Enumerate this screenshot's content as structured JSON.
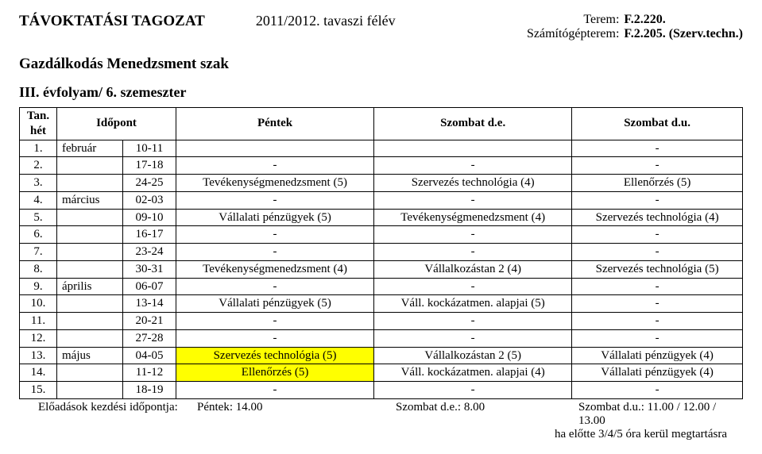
{
  "header": {
    "title": "TÁVOKTATÁSI TAGOZAT",
    "semester": "2011/2012. tavaszi félév",
    "room_label": "Terem:",
    "room_value": "F.2.220.",
    "lab_label": "Számítógépterem:",
    "lab_value": "F.2.205. (Szerv.techn.)",
    "major": "Gazdálkodás Menedzsment szak",
    "year": "III. évfolyam/ 6. szemeszter"
  },
  "columns": {
    "num_l1": "Tan.",
    "num_l2": "hét",
    "time": "Időpont",
    "fri": "Péntek",
    "sat_am": "Szombat d.e.",
    "sat_pm": "Szombat d.u."
  },
  "rows": [
    {
      "n": "1.",
      "m": "február",
      "d": "10-11",
      "a": "",
      "b": "",
      "c": "-"
    },
    {
      "n": "2.",
      "m": "",
      "d": "17-18",
      "a": "-",
      "b": "-",
      "c": "-"
    },
    {
      "n": "3.",
      "m": "",
      "d": "24-25",
      "a": "Tevékenységmenedzsment (5)",
      "b": "Szervezés technológia (4)",
      "c": "Ellenőrzés (5)"
    },
    {
      "n": "4.",
      "m": "március",
      "d": "02-03",
      "a": "-",
      "b": "-",
      "c": "-"
    },
    {
      "n": "5.",
      "m": "",
      "d": "09-10",
      "a": "Vállalati pénzügyek (5)",
      "b": "Tevékenységmenedzsment (4)",
      "c": "Szervezés technológia (4)"
    },
    {
      "n": "6.",
      "m": "",
      "d": "16-17",
      "a": "-",
      "b": "-",
      "c": "-"
    },
    {
      "n": "7.",
      "m": "",
      "d": "23-24",
      "a": "-",
      "b": "-",
      "c": "-"
    },
    {
      "n": "8.",
      "m": "",
      "d": "30-31",
      "a": "Tevékenységmenedzsment (4)",
      "b": "Vállalkozástan 2 (4)",
      "c": "Szervezés technológia (5)"
    },
    {
      "n": "9.",
      "m": "április",
      "d": "06-07",
      "a": "-",
      "b": "-",
      "c": "-"
    },
    {
      "n": "10.",
      "m": "",
      "d": "13-14",
      "a": "Vállalati pénzügyek (5)",
      "b": "Váll. kockázatmen. alapjai (5)",
      "c": "-"
    },
    {
      "n": "11.",
      "m": "",
      "d": "20-21",
      "a": "-",
      "b": "-",
      "c": "-"
    },
    {
      "n": "12.",
      "m": "",
      "d": "27-28",
      "a": "-",
      "b": "-",
      "c": "-"
    },
    {
      "n": "13.",
      "m": "május",
      "d": "04-05",
      "a": "Szervezés technológia (5)",
      "a_hl": true,
      "b": "Vállalkozástan 2 (5)",
      "c": "Vállalati pénzügyek (4)"
    },
    {
      "n": "14.",
      "m": "",
      "d": "11-12",
      "a": "Ellenőrzés (5)",
      "a_hl": true,
      "b": "Váll. kockázatmen. alapjai (4)",
      "c": "Vállalati pénzügyek (4)"
    },
    {
      "n": "15.",
      "m": "",
      "d": "18-19",
      "a": "-",
      "b": "-",
      "c": "-"
    }
  ],
  "footer": {
    "label": "Előadások kezdési időpontja:",
    "fri": "Péntek: 14.00",
    "sat_am": "Szombat d.e.: 8.00",
    "sat_pm": "Szombat d.u.: 11.00 / 12.00 / 13.00",
    "note": "ha előtte 3/4/5 óra kerül megtartásra"
  },
  "style": {
    "highlight_color": "#ffff00",
    "border_color": "#000000",
    "bg_color": "#ffffff"
  }
}
